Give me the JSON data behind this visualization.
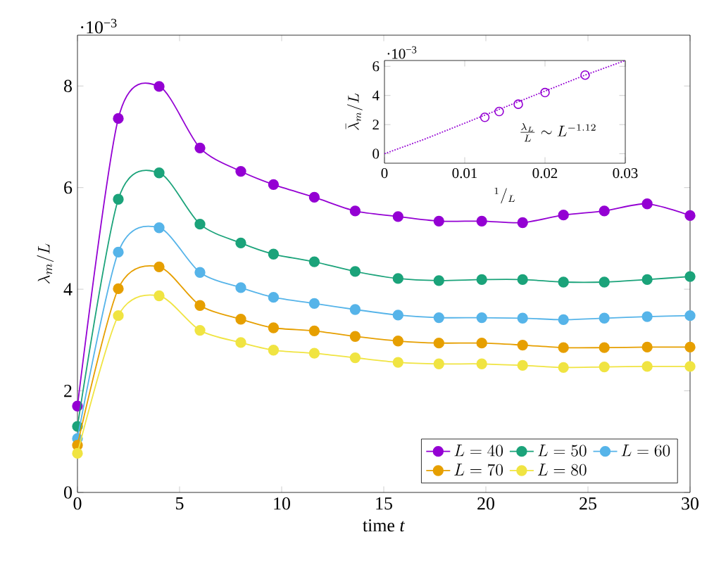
{
  "chart_data": [
    {
      "type": "line",
      "xlabel": "time *t*",
      "ylabel": "\\lambda_m/L",
      "annotations": [
        "·10$^{−3}$"
      ],
      "x": [
        0,
        2,
        4,
        6,
        8,
        9.6,
        11.6,
        13.6,
        15.7,
        17.7,
        19.8,
        21.8,
        23.8,
        25.8,
        27.9,
        30
      ],
      "series": [
        {
          "name": "L = 40",
          "color": "#9400d3",
          "values": [
            1.7,
            7.36,
            7.99,
            6.78,
            6.32,
            6.06,
            5.81,
            5.54,
            5.43,
            5.34,
            5.34,
            5.31,
            5.46,
            5.54,
            5.68,
            5.45
          ]
        },
        {
          "name": "L = 50",
          "color": "#1ba37a",
          "values": [
            1.3,
            5.77,
            6.29,
            5.28,
            4.91,
            4.69,
            4.54,
            4.35,
            4.21,
            4.17,
            4.19,
            4.19,
            4.14,
            4.14,
            4.19,
            4.25
          ]
        },
        {
          "name": "L = 60",
          "color": "#56b4e9",
          "values": [
            1.06,
            4.73,
            5.21,
            4.33,
            4.03,
            3.84,
            3.72,
            3.6,
            3.49,
            3.44,
            3.44,
            3.43,
            3.4,
            3.43,
            3.46,
            3.48
          ]
        },
        {
          "name": "L = 70",
          "color": "#e69f00",
          "values": [
            0.93,
            4.01,
            4.44,
            3.68,
            3.41,
            3.24,
            3.18,
            3.07,
            2.98,
            2.94,
            2.94,
            2.9,
            2.85,
            2.85,
            2.86,
            2.86
          ]
        },
        {
          "name": "L = 80",
          "color": "#f0e442",
          "values": [
            0.77,
            3.48,
            3.87,
            3.19,
            2.95,
            2.8,
            2.74,
            2.65,
            2.56,
            2.53,
            2.53,
            2.5,
            2.46,
            2.47,
            2.48,
            2.48
          ]
        }
      ],
      "xlim": [
        0,
        30
      ],
      "ylim": [
        0,
        9
      ],
      "xticks": [
        0,
        5,
        10,
        15,
        20,
        25,
        30
      ],
      "yticks": [
        0,
        2,
        4,
        6,
        8
      ],
      "legend": "bottom right",
      "marker": "circle"
    },
    {
      "type": "scatter",
      "xlabel": "{}^{1}/_{L}",
      "ylabel": "\\bar{\\lambda}_m/L",
      "annotations": [
        "·10$^{−3}$",
        "\\frac{\\lambda_L}{L} \\sim L^{-1.12}"
      ],
      "series": [
        {
          "type": "scatter",
          "marker": "circle",
          "color": "#9400d3",
          "x": [
            0.0125,
            0.01429,
            0.01667,
            0.02,
            0.025
          ],
          "values": [
            2.5,
            2.9,
            3.4,
            4.2,
            5.4
          ]
        },
        {
          "type": "line",
          "marker": "none",
          "line_style": "dotted",
          "color": "#9400d3",
          "x": [
            0,
            0.005,
            0.01,
            0.015,
            0.02,
            0.025,
            0.03
          ],
          "values": [
            0,
            1,
            2.1,
            3.2,
            4.3,
            5.4,
            6.4
          ]
        }
      ],
      "xlim": [
        0,
        0.03
      ],
      "ylim": [
        -0.65,
        6.4
      ],
      "xticks": [
        0,
        0.01,
        0.02,
        0.03
      ],
      "yticks": [
        0,
        2,
        4,
        6
      ]
    }
  ]
}
